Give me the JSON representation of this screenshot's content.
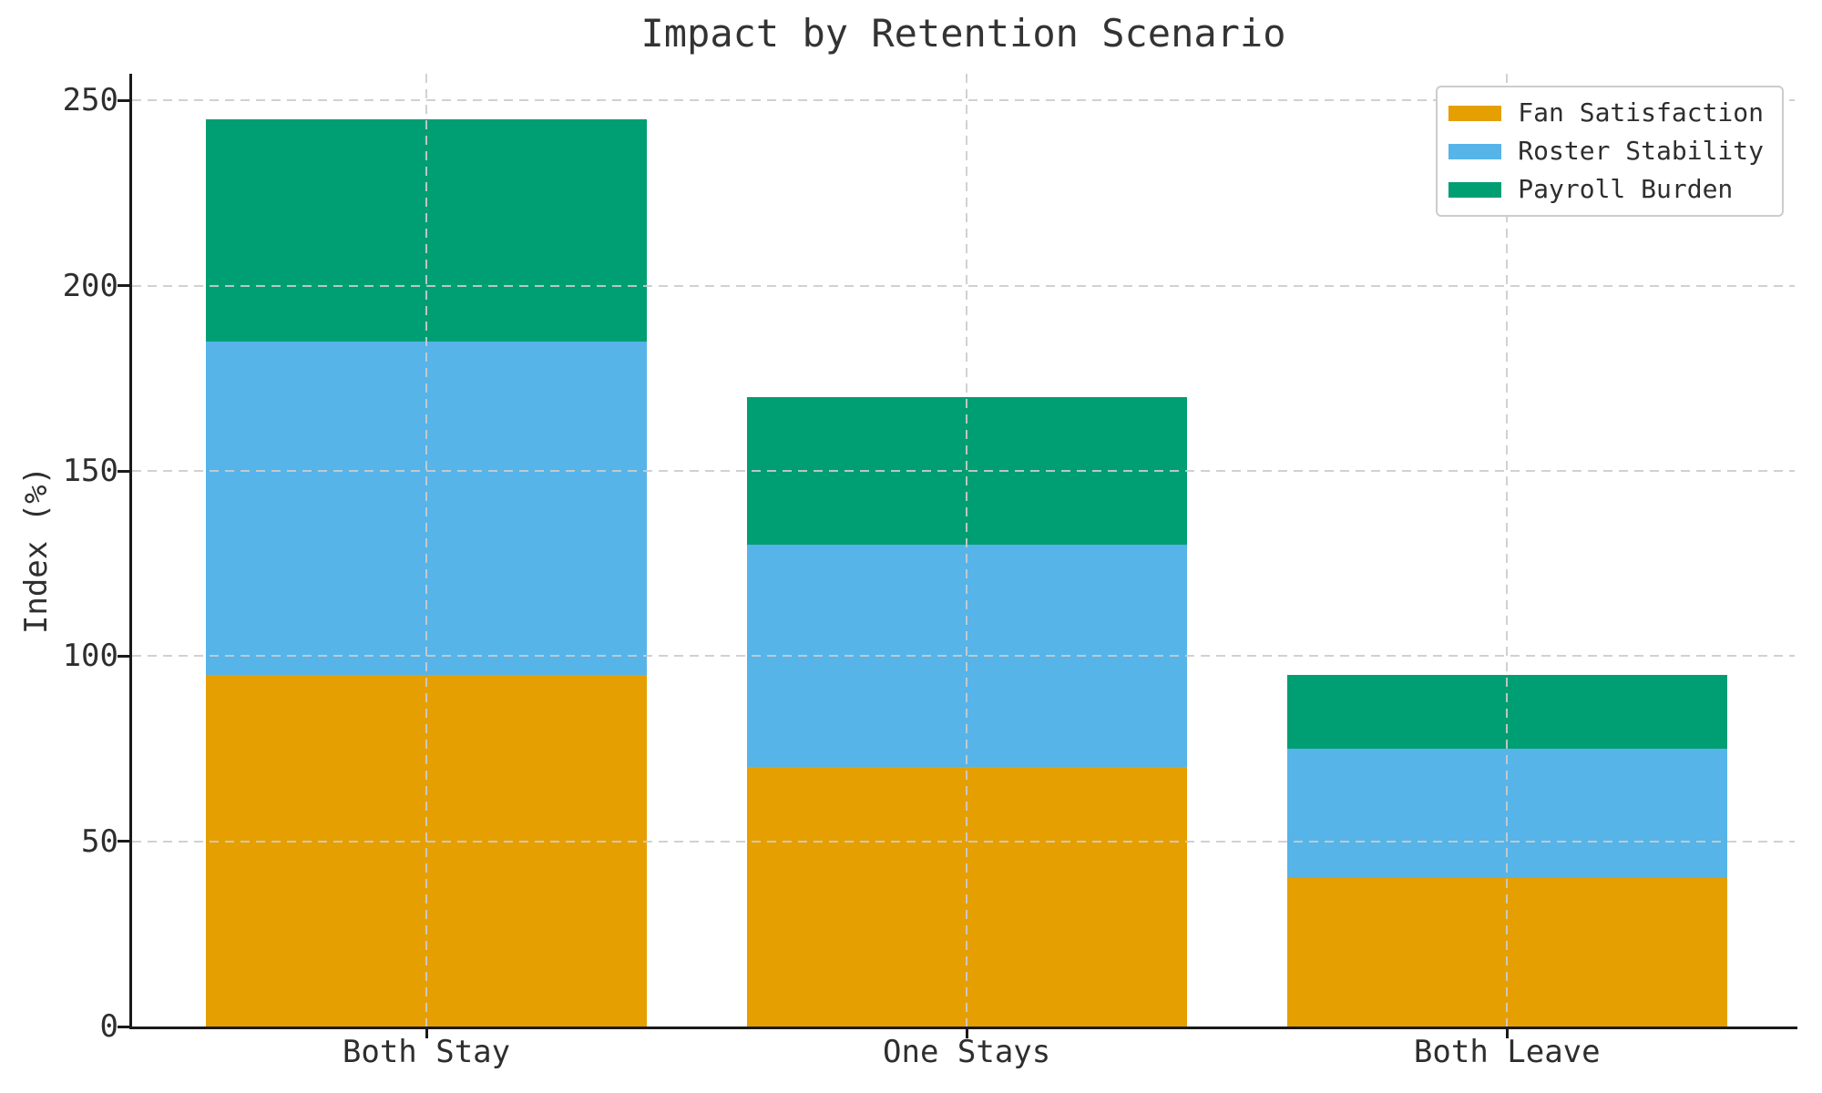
{
  "chart_data": {
    "type": "bar",
    "stacked": true,
    "title": "Impact by Retention Scenario",
    "ylabel": "Index (%)",
    "xlabel": "",
    "categories": [
      "Both Stay",
      "One Stays",
      "Both Leave"
    ],
    "series": [
      {
        "name": "Fan Satisfaction",
        "color": "#E69F00",
        "values": [
          95,
          70,
          40
        ]
      },
      {
        "name": "Roster Stability",
        "color": "#56B4E9",
        "values": [
          90,
          60,
          35
        ]
      },
      {
        "name": "Payroll Burden",
        "color": "#009E73",
        "values": [
          60,
          40,
          20
        ]
      }
    ],
    "stack_totals": [
      245,
      170,
      95
    ],
    "yticks": [
      0,
      50,
      100,
      150,
      200,
      250
    ],
    "ylim": [
      0,
      257.25
    ],
    "grid": {
      "visible": true,
      "style": "dashed",
      "color": "#cccccc",
      "axes": "both",
      "above_bars": true
    },
    "legend": {
      "position": "upper right"
    }
  },
  "colors": {
    "background": "#ffffff",
    "text": "#2e2e2e",
    "title": "#333333",
    "spine": "#1a1a1a",
    "grid": "#cccccc",
    "legend_border": "#cccccc"
  }
}
